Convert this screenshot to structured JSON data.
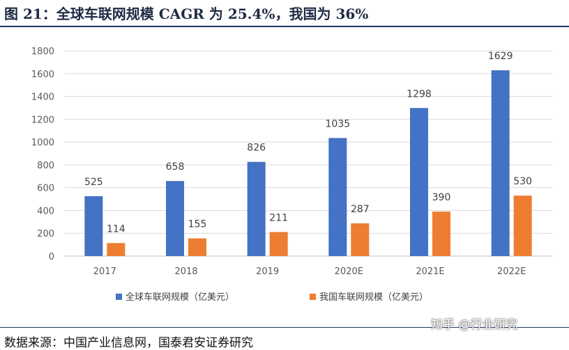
{
  "figure": {
    "title": "图 21：全球车联网规模 CAGR 为 25.4%，我国为 36%",
    "source": "数据来源：中国产业信息网，国泰君安证券研究",
    "watermark": "知乎 @行业研究"
  },
  "chart_data": {
    "type": "bar",
    "title": "",
    "xlabel": "",
    "ylabel": "",
    "categories": [
      "2017",
      "2018",
      "2019",
      "2020E",
      "2021E",
      "2022E"
    ],
    "ylim": [
      0,
      1800
    ],
    "yticks": [
      0,
      200,
      400,
      600,
      800,
      1000,
      1200,
      1400,
      1600,
      1800
    ],
    "grid": true,
    "legend_position": "bottom",
    "series": [
      {
        "name": "全球车联网规模（亿美元）",
        "color": "#4472c4",
        "values": [
          525,
          658,
          826,
          1035,
          1298,
          1629
        ]
      },
      {
        "name": "我国车联网规模（亿美元）",
        "color": "#ed7d31",
        "values": [
          114,
          155,
          211,
          287,
          390,
          530
        ]
      }
    ]
  }
}
